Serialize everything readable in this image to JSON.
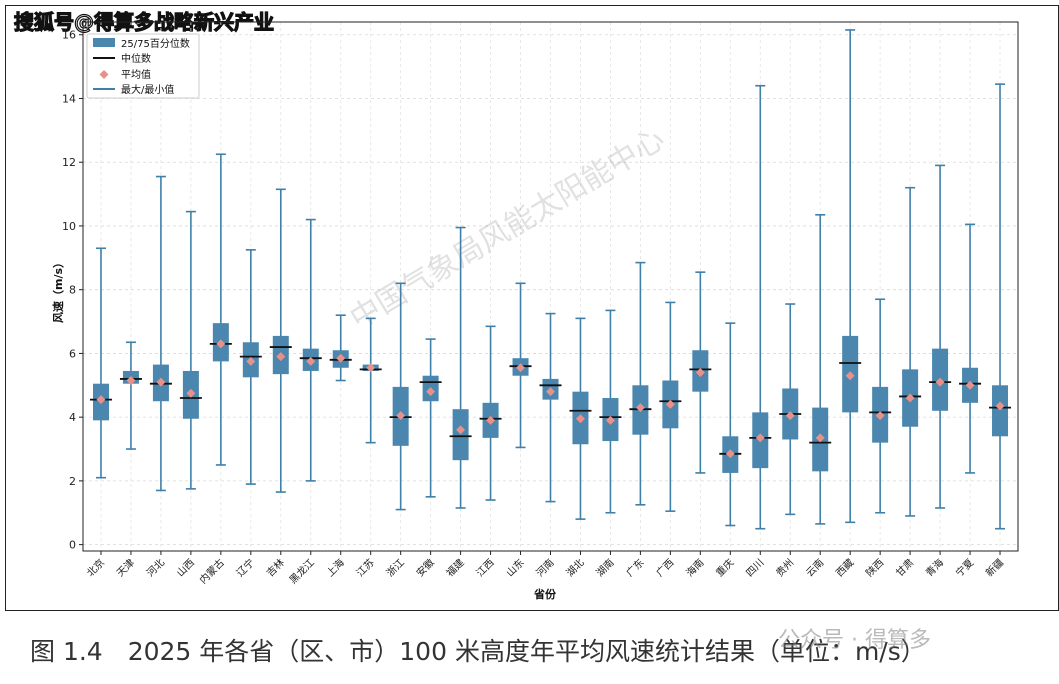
{
  "watermark_top": "搜狐号@得算多战略新兴产业",
  "center_watermark": "中国气象局风能太阳能中心",
  "caption": "图 1.4　2025 年各省（区、市）100 米高度年平均风速统计结果（单位：m/s）",
  "bottom_watermark": "公众号 · 得算多",
  "colors": {
    "box": "#4a86ad",
    "median": "#111111",
    "mean": "#e8908a",
    "whisker": "#3f7fa8"
  },
  "chart_data": {
    "type": "boxplot",
    "xlabel": "省份",
    "ylabel": "风速（m/s）",
    "ylim": [
      -0.2,
      16.4
    ],
    "yticks": [
      0,
      2,
      4,
      6,
      8,
      10,
      12,
      14,
      16
    ],
    "grid": true,
    "legend": {
      "placement": "top-left",
      "entries": [
        "25/75百分位数",
        "中位数",
        "平均值",
        "最大/最小值"
      ]
    },
    "categories": [
      "北京",
      "天津",
      "河北",
      "山西",
      "内蒙古",
      "辽宁",
      "吉林",
      "黑龙江",
      "上海",
      "江苏",
      "浙江",
      "安徽",
      "福建",
      "江西",
      "山东",
      "河南",
      "湖北",
      "湖南",
      "广东",
      "广西",
      "海南",
      "重庆",
      "四川",
      "贵州",
      "云南",
      "西藏",
      "陕西",
      "甘肃",
      "青海",
      "宁夏",
      "新疆"
    ],
    "min": [
      2.1,
      3.0,
      1.7,
      1.75,
      2.5,
      1.9,
      1.65,
      2.0,
      5.15,
      3.2,
      1.1,
      1.5,
      1.15,
      1.4,
      3.05,
      1.35,
      0.8,
      1.0,
      1.25,
      1.05,
      2.25,
      0.6,
      0.5,
      0.95,
      0.65,
      0.7,
      1.0,
      0.9,
      1.15,
      2.25,
      0.5
    ],
    "q1": [
      3.9,
      5.05,
      4.5,
      3.95,
      5.75,
      5.25,
      5.35,
      5.45,
      5.55,
      5.45,
      3.1,
      4.5,
      2.65,
      3.35,
      5.3,
      4.55,
      3.15,
      3.25,
      3.45,
      3.65,
      4.8,
      2.25,
      2.4,
      3.3,
      2.3,
      4.15,
      3.2,
      3.7,
      4.2,
      4.45,
      3.4
    ],
    "median": [
      4.55,
      5.2,
      5.05,
      4.6,
      6.3,
      5.9,
      6.2,
      5.85,
      5.8,
      5.5,
      4.0,
      5.1,
      3.4,
      3.95,
      5.6,
      5.0,
      4.2,
      4.0,
      4.25,
      4.5,
      5.5,
      2.85,
      3.35,
      4.1,
      3.2,
      5.7,
      4.15,
      4.65,
      5.1,
      5.05,
      4.3
    ],
    "q3": [
      5.05,
      5.45,
      5.65,
      5.45,
      6.95,
      6.35,
      6.55,
      6.15,
      6.1,
      5.65,
      4.95,
      5.3,
      4.25,
      4.45,
      5.85,
      5.2,
      4.8,
      4.6,
      5.0,
      5.15,
      6.1,
      3.4,
      4.15,
      4.9,
      4.3,
      6.55,
      4.95,
      5.5,
      6.15,
      5.55,
      5.0
    ],
    "max": [
      9.3,
      6.35,
      11.55,
      10.45,
      12.25,
      9.25,
      11.15,
      10.2,
      7.2,
      7.1,
      8.2,
      6.45,
      9.95,
      6.85,
      8.2,
      7.25,
      7.1,
      7.35,
      8.85,
      7.6,
      8.55,
      6.95,
      14.4,
      7.55,
      10.35,
      16.15,
      7.7,
      11.2,
      11.9,
      10.05,
      14.45
    ],
    "mean": [
      4.55,
      5.15,
      5.1,
      4.75,
      6.3,
      5.75,
      5.9,
      5.75,
      5.85,
      5.55,
      4.05,
      4.8,
      3.6,
      3.9,
      5.55,
      4.8,
      3.95,
      3.9,
      4.3,
      4.4,
      5.4,
      2.85,
      3.35,
      4.05,
      3.35,
      5.3,
      4.05,
      4.6,
      5.1,
      5.0,
      4.35
    ]
  }
}
